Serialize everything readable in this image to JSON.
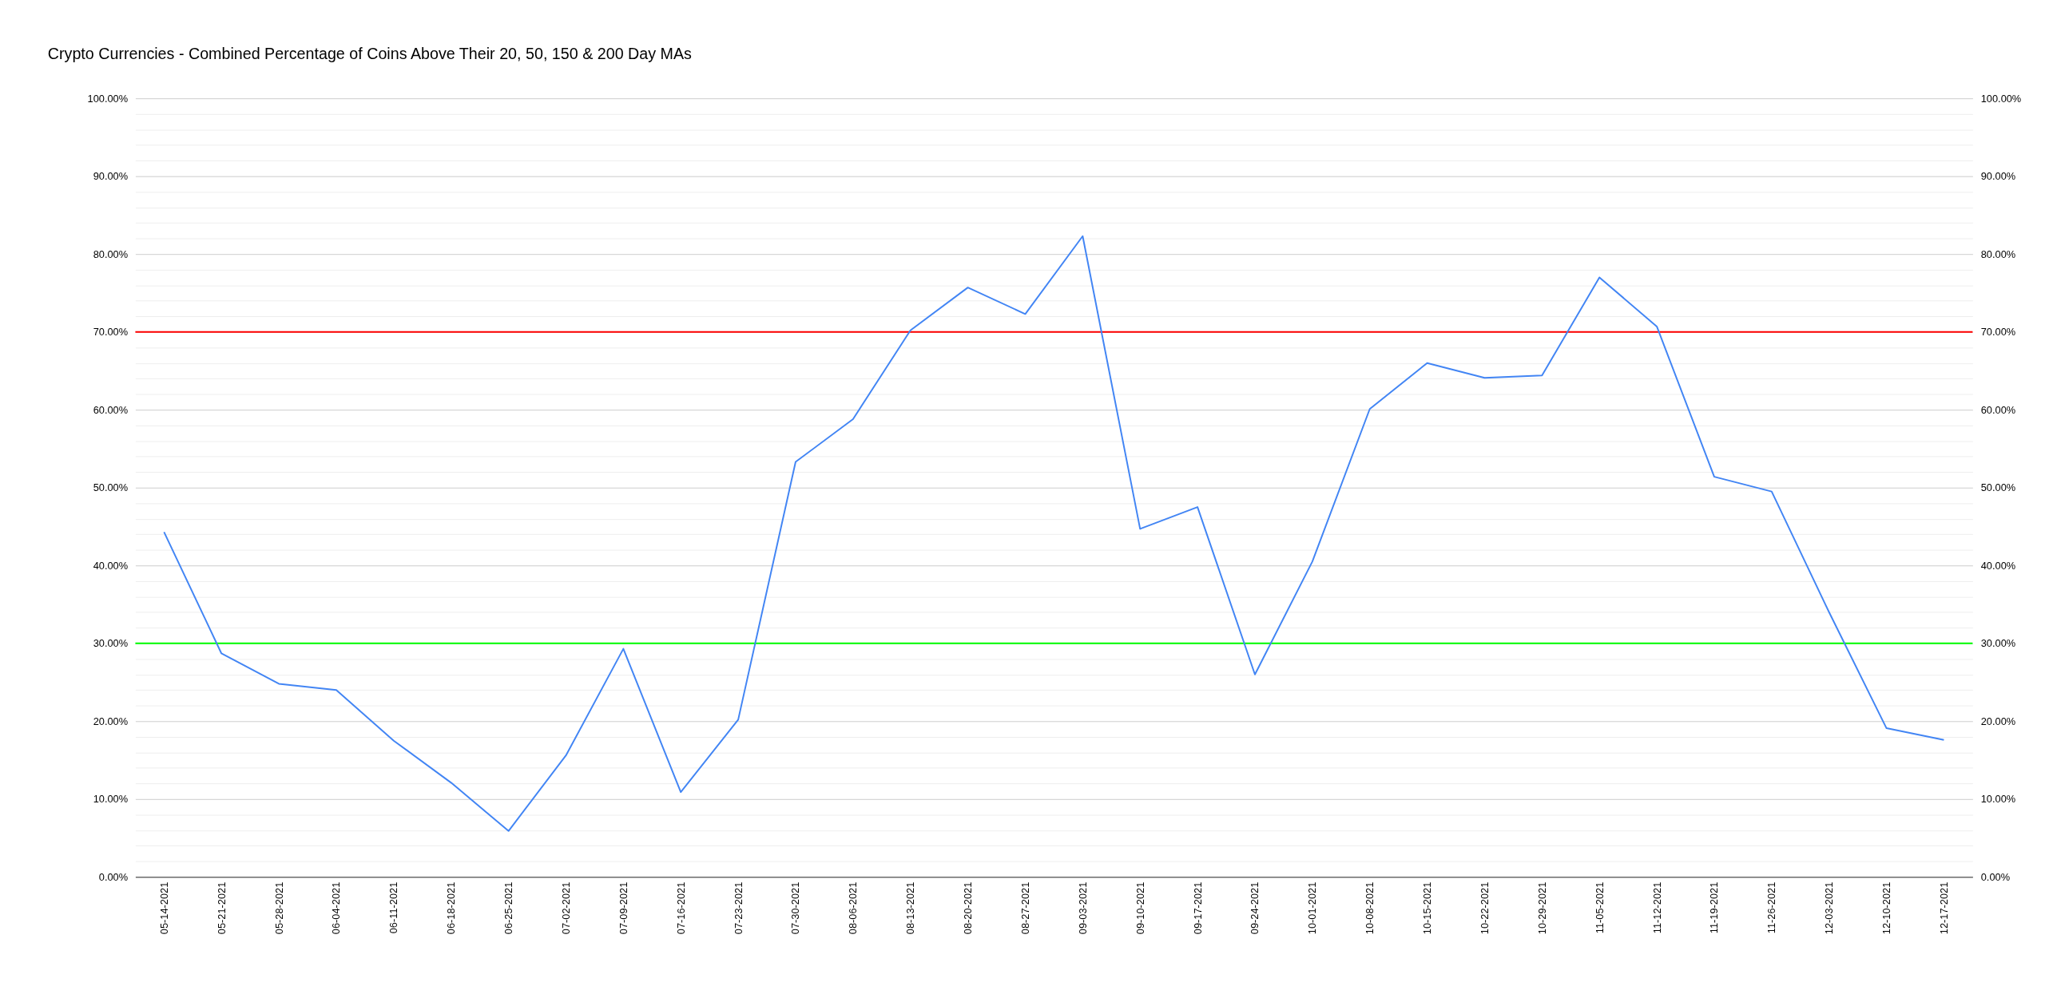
{
  "chart_data": {
    "type": "line",
    "title": "Crypto Currencies - Combined Percentage of Coins Above Their 20, 50, 150 & 200 Day MAs",
    "categories": [
      "05-14-2021",
      "05-21-2021",
      "05-28-2021",
      "06-04-2021",
      "06-11-2021",
      "06-18-2021",
      "06-25-2021",
      "07-02-2021",
      "07-09-2021",
      "07-16-2021",
      "07-23-2021",
      "07-30-2021",
      "08-06-2021",
      "08-13-2021",
      "08-20-2021",
      "08-27-2021",
      "09-03-2021",
      "09-10-2021",
      "09-17-2021",
      "09-24-2021",
      "10-01-2021",
      "10-08-2021",
      "10-15-2021",
      "10-22-2021",
      "10-29-2021",
      "11-05-2021",
      "11-12-2021",
      "11-19-2021",
      "11-26-2021",
      "12-03-2021",
      "12-10-2021",
      "12-17-2021"
    ],
    "series": [
      {
        "color": "#4285f4",
        "values": [
          44.3,
          28.7,
          24.8,
          24.0,
          17.5,
          12.1,
          5.9,
          15.6,
          29.3,
          10.9,
          20.2,
          53.3,
          58.8,
          70.2,
          75.7,
          72.3,
          82.3,
          44.7,
          47.5,
          26.0,
          40.5,
          60.1,
          66.0,
          64.1,
          64.4,
          77.0,
          70.7,
          51.4,
          49.5,
          34.0,
          19.1,
          17.6
        ]
      }
    ],
    "ylim": [
      0,
      100
    ],
    "yticks": [
      {
        "value": 0,
        "label": "0.00%"
      },
      {
        "value": 2,
        "label": null
      },
      {
        "value": 4,
        "label": null
      },
      {
        "value": 6,
        "label": null
      },
      {
        "value": 8,
        "label": null
      },
      {
        "value": 10,
        "label": "10.00%"
      },
      {
        "value": 12,
        "label": null
      },
      {
        "value": 14,
        "label": null
      },
      {
        "value": 16,
        "label": null
      },
      {
        "value": 18,
        "label": null
      },
      {
        "value": 20,
        "label": "20.00%"
      },
      {
        "value": 22,
        "label": null
      },
      {
        "value": 24,
        "label": null
      },
      {
        "value": 26,
        "label": null
      },
      {
        "value": 28,
        "label": null
      },
      {
        "value": 30,
        "label": "30.00%"
      },
      {
        "value": 32,
        "label": null
      },
      {
        "value": 34,
        "label": null
      },
      {
        "value": 36,
        "label": null
      },
      {
        "value": 38,
        "label": null
      },
      {
        "value": 40,
        "label": "40.00%"
      },
      {
        "value": 42,
        "label": null
      },
      {
        "value": 44,
        "label": null
      },
      {
        "value": 46,
        "label": null
      },
      {
        "value": 48,
        "label": null
      },
      {
        "value": 50,
        "label": "50.00%"
      },
      {
        "value": 52,
        "label": null
      },
      {
        "value": 54,
        "label": null
      },
      {
        "value": 56,
        "label": null
      },
      {
        "value": 58,
        "label": null
      },
      {
        "value": 60,
        "label": "60.00%"
      },
      {
        "value": 62,
        "label": null
      },
      {
        "value": 64,
        "label": null
      },
      {
        "value": 66,
        "label": null
      },
      {
        "value": 68,
        "label": null
      },
      {
        "value": 70,
        "label": "70.00%"
      },
      {
        "value": 72,
        "label": null
      },
      {
        "value": 74,
        "label": null
      },
      {
        "value": 76,
        "label": null
      },
      {
        "value": 78,
        "label": null
      },
      {
        "value": 80,
        "label": "80.00%"
      },
      {
        "value": 82,
        "label": null
      },
      {
        "value": 84,
        "label": null
      },
      {
        "value": 86,
        "label": null
      },
      {
        "value": 88,
        "label": null
      },
      {
        "value": 90,
        "label": "90.00%"
      },
      {
        "value": 92,
        "label": null
      },
      {
        "value": 94,
        "label": null
      },
      {
        "value": 96,
        "label": null
      },
      {
        "value": 98,
        "label": null
      },
      {
        "value": 100,
        "label": "100.00%"
      }
    ],
    "y2lim": [
      0,
      100
    ],
    "y2ticks": [
      {
        "value": 0,
        "label": "0.00%"
      },
      {
        "value": 10,
        "label": "10.00%"
      },
      {
        "value": 20,
        "label": "20.00%"
      },
      {
        "value": 30,
        "label": "30.00%"
      },
      {
        "value": 40,
        "label": "40.00%"
      },
      {
        "value": 50,
        "label": "50.00%"
      },
      {
        "value": 60,
        "label": "60.00%"
      },
      {
        "value": 70,
        "label": "70.00%"
      },
      {
        "value": 80,
        "label": "80.00%"
      },
      {
        "value": 90,
        "label": "90.00%"
      },
      {
        "value": 100,
        "label": "100.00%"
      }
    ],
    "ref_lines": [
      {
        "axis": "y",
        "value": 70,
        "color": "#ff0000"
      },
      {
        "axis": "y",
        "value": 30,
        "color": "#00ff00"
      }
    ],
    "grid": "y",
    "marker": "none",
    "line_style": "solid"
  }
}
